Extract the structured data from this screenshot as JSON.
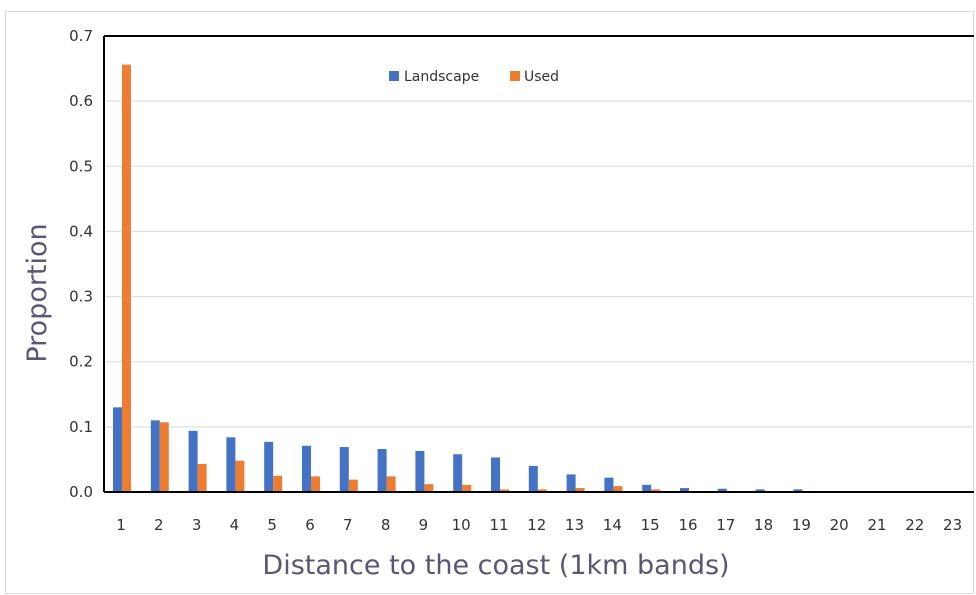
{
  "chart_data": {
    "type": "bar",
    "title": "",
    "xlabel": "Distance to the coast (1km bands)",
    "ylabel": "Proportion",
    "ylim": [
      0,
      0.7
    ],
    "yticks": [
      "0.0",
      "0.1",
      "0.2",
      "0.3",
      "0.4",
      "0.5",
      "0.6",
      "0.7"
    ],
    "grid": true,
    "legend_position": "top-center",
    "categories": [
      "1",
      "2",
      "3",
      "4",
      "5",
      "6",
      "7",
      "8",
      "9",
      "10",
      "11",
      "12",
      "13",
      "14",
      "15",
      "16",
      "17",
      "18",
      "19",
      "20",
      "21",
      "22",
      "23"
    ],
    "series": [
      {
        "name": "Landscape",
        "color": "#4472c4",
        "values": [
          0.13,
          0.11,
          0.094,
          0.084,
          0.077,
          0.071,
          0.069,
          0.066,
          0.063,
          0.058,
          0.053,
          0.04,
          0.027,
          0.022,
          0.011,
          0.006,
          0.005,
          0.004,
          0.004,
          0.001,
          0.001,
          0.001,
          0.001
        ]
      },
      {
        "name": "Used",
        "color": "#ed7d31",
        "values": [
          0.656,
          0.107,
          0.043,
          0.048,
          0.025,
          0.024,
          0.019,
          0.024,
          0.012,
          0.011,
          0.004,
          0.004,
          0.006,
          0.009,
          0.004,
          0.0,
          0.0,
          0.0,
          0.0,
          0.0,
          0.0,
          0.0,
          0.0
        ]
      }
    ]
  }
}
